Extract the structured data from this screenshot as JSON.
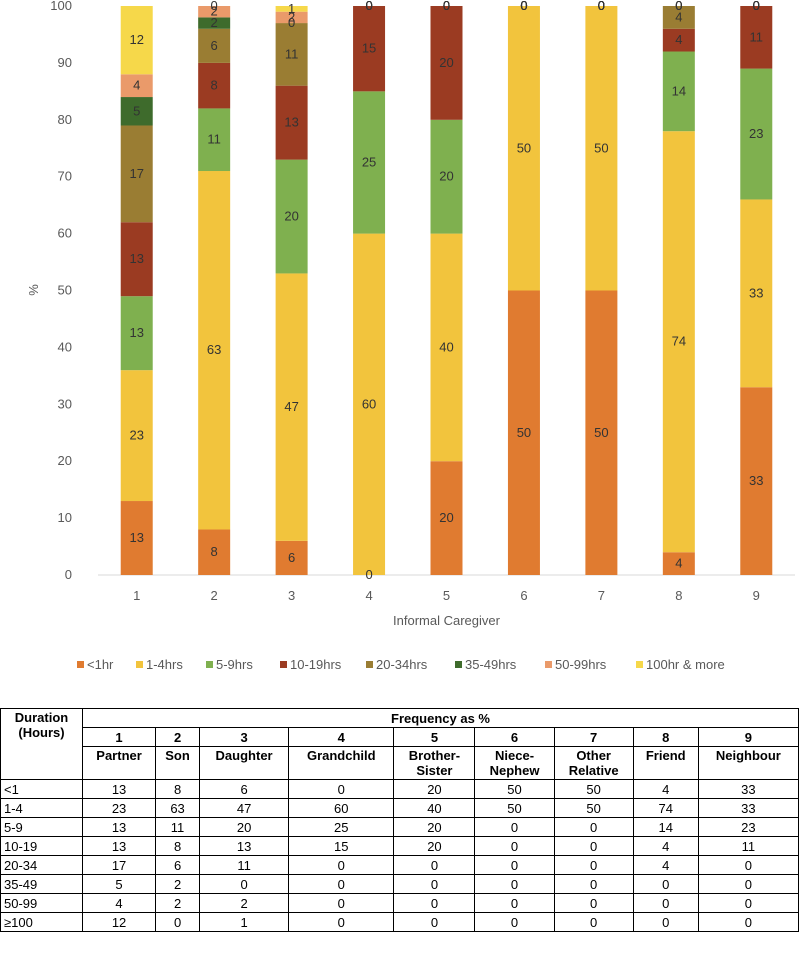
{
  "chart_data": {
    "type": "bar",
    "stacked": true,
    "categories": [
      "1",
      "2",
      "3",
      "4",
      "5",
      "6",
      "7",
      "8",
      "9"
    ],
    "xlabel": "Informal Caregiver",
    "ylabel": "%",
    "ylim": [
      0,
      100
    ],
    "yticks": [
      0,
      10,
      20,
      30,
      40,
      50,
      60,
      70,
      80,
      90,
      100
    ],
    "grid": false,
    "legend_position": "bottom",
    "series": [
      {
        "name": "<1hr",
        "color": "#E07B30",
        "values": [
          13,
          8,
          6,
          0,
          20,
          50,
          50,
          4,
          33
        ]
      },
      {
        "name": "1-4hrs",
        "color": "#F2C43D",
        "values": [
          23,
          63,
          47,
          60,
          40,
          50,
          50,
          74,
          33
        ]
      },
      {
        "name": "5-9hrs",
        "color": "#7FB04F",
        "values": [
          13,
          11,
          20,
          25,
          20,
          0,
          0,
          14,
          23
        ]
      },
      {
        "name": "10-19hrs",
        "color": "#9B3B22",
        "values": [
          13,
          8,
          13,
          15,
          20,
          0,
          0,
          4,
          11
        ]
      },
      {
        "name": "20-34hrs",
        "color": "#9A7D33",
        "values": [
          17,
          6,
          11,
          0,
          0,
          0,
          0,
          4,
          0
        ]
      },
      {
        "name": "35-49hrs",
        "color": "#3E6B2C",
        "values": [
          5,
          2,
          0,
          0,
          0,
          0,
          0,
          0,
          0
        ]
      },
      {
        "name": "50-99hrs",
        "color": "#EA9A6A",
        "values": [
          4,
          2,
          2,
          0,
          0,
          0,
          0,
          0,
          0
        ]
      },
      {
        "name": "100hr & more",
        "color": "#F6D84A",
        "values": [
          12,
          0,
          1,
          0,
          0,
          0,
          0,
          0,
          0
        ]
      }
    ]
  },
  "table": {
    "duration_header_line1": "Duration",
    "duration_header_line2": "(Hours)",
    "frequency_header": "Frequency as %",
    "column_numbers": [
      "1",
      "2",
      "3",
      "4",
      "5",
      "6",
      "7",
      "8",
      "9"
    ],
    "column_names_line1": [
      "Partner",
      "Son",
      "Daughter",
      "Grandchild",
      "Brother-",
      "Niece-",
      "Other",
      "Friend",
      "Neighbour"
    ],
    "column_names_line2": [
      "",
      "",
      "",
      "",
      "Sister",
      "Nephew",
      "Relative",
      "",
      ""
    ],
    "rows": [
      {
        "label": "<1",
        "values": [
          "13",
          "8",
          "6",
          "0",
          "20",
          "50",
          "50",
          "4",
          "33"
        ]
      },
      {
        "label": "1-4",
        "values": [
          "23",
          "63",
          "47",
          "60",
          "40",
          "50",
          "50",
          "74",
          "33"
        ]
      },
      {
        "label": "5-9",
        "values": [
          "13",
          "11",
          "20",
          "25",
          "20",
          "0",
          "0",
          "14",
          "23"
        ]
      },
      {
        "label": "10-19",
        "values": [
          "13",
          "8",
          "13",
          "15",
          "20",
          "0",
          "0",
          "4",
          "11"
        ]
      },
      {
        "label": "20-34",
        "values": [
          "17",
          "6",
          "11",
          "0",
          "0",
          "0",
          "0",
          "4",
          "0"
        ]
      },
      {
        "label": "35-49",
        "values": [
          "5",
          "2",
          "0",
          "0",
          "0",
          "0",
          "0",
          "0",
          "0"
        ]
      },
      {
        "label": "50-99",
        "values": [
          "4",
          "2",
          "2",
          "0",
          "0",
          "0",
          "0",
          "0",
          "0"
        ]
      },
      {
        "label": "≥100",
        "values": [
          "12",
          "0",
          "1",
          "0",
          "0",
          "0",
          "0",
          "0",
          "0"
        ]
      }
    ]
  }
}
